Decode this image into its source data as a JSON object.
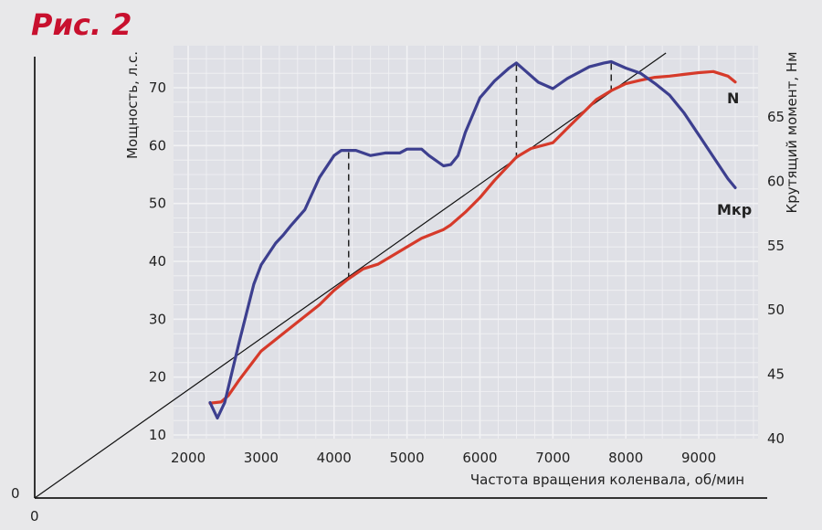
{
  "figure_title": "Рис. 2",
  "outer_zero_y": "0",
  "outer_zero_x": "0",
  "colors": {
    "plot_bg": "#dfe0e6",
    "grid": "#f2f2f4",
    "torque": "#3d3f8f",
    "power": "#d63a2a",
    "diagonal": "#111111",
    "title": "#c8102e"
  },
  "chart_data": {
    "type": "line",
    "xlabel": "Частота вращения коленвала, об/мин",
    "ylabel_left": "Мощность, л.с.",
    "ylabel_right": "Крутящий момент, Нм",
    "x_range": [
      2000,
      9750
    ],
    "y_left_range": [
      10,
      76
    ],
    "y_right_range": [
      40,
      70
    ],
    "x_ticks": [
      2000,
      3000,
      4000,
      5000,
      6000,
      7000,
      8000,
      9000
    ],
    "y_left_ticks": [
      10,
      20,
      30,
      40,
      50,
      60,
      70
    ],
    "y_right_ticks": [
      40,
      45,
      50,
      55,
      60,
      65
    ],
    "grid": true,
    "series": [
      {
        "name": "N",
        "axis": "left",
        "color": "#d63a2a",
        "x": [
          2300,
          2450,
          2550,
          2700,
          2850,
          3000,
          3200,
          3500,
          3800,
          4000,
          4200,
          4400,
          4600,
          4800,
          5000,
          5200,
          5500,
          5600,
          5800,
          6000,
          6200,
          6500,
          6700,
          7000,
          7200,
          7400,
          7600,
          7800,
          8000,
          8200,
          8400,
          8600,
          8800,
          9000,
          9200,
          9400,
          9500
        ],
        "y": [
          15.5,
          15.7,
          16.8,
          19.5,
          22,
          24.5,
          26.5,
          29.5,
          32.5,
          35,
          37,
          38.7,
          39.5,
          41,
          42.5,
          44,
          45.5,
          46.3,
          48.5,
          51,
          54,
          58,
          59.5,
          60.5,
          63,
          65.5,
          68,
          69.5,
          70.7,
          71.3,
          71.8,
          72,
          72.3,
          72.6,
          72.8,
          72,
          71
        ]
      },
      {
        "name": "Мкр",
        "axis": "right",
        "color": "#3d3f8f",
        "x": [
          2300,
          2400,
          2500,
          2700,
          2900,
          3000,
          3200,
          3300,
          3400,
          3600,
          3800,
          4000,
          4100,
          4200,
          4300,
          4500,
          4700,
          4900,
          5000,
          5200,
          5300,
          5500,
          5600,
          5700,
          5800,
          6000,
          6200,
          6400,
          6500,
          6600,
          6800,
          7000,
          7200,
          7500,
          7700,
          7800,
          8000,
          8200,
          8400,
          8600,
          8800,
          9000,
          9200,
          9400,
          9500
        ],
        "y": [
          42.8,
          41.6,
          42.8,
          47.5,
          52,
          53.5,
          55.2,
          55.8,
          56.5,
          57.8,
          60.3,
          62,
          62.4,
          62.4,
          62.4,
          62,
          62.2,
          62.2,
          62.5,
          62.5,
          62,
          61.2,
          61.3,
          62,
          63.8,
          66.5,
          67.8,
          68.8,
          69.2,
          68.7,
          67.7,
          67.2,
          68,
          68.9,
          69.2,
          69.3,
          68.8,
          68.4,
          67.6,
          66.7,
          65.3,
          63.6,
          61.9,
          60.2,
          59.5
        ]
      }
    ],
    "dashed_markers_rpm": [
      4200,
      6500,
      7800
    ],
    "reference_line": {
      "from": [
        0,
        0
      ],
      "to": [
        8550,
        76
      ]
    }
  }
}
